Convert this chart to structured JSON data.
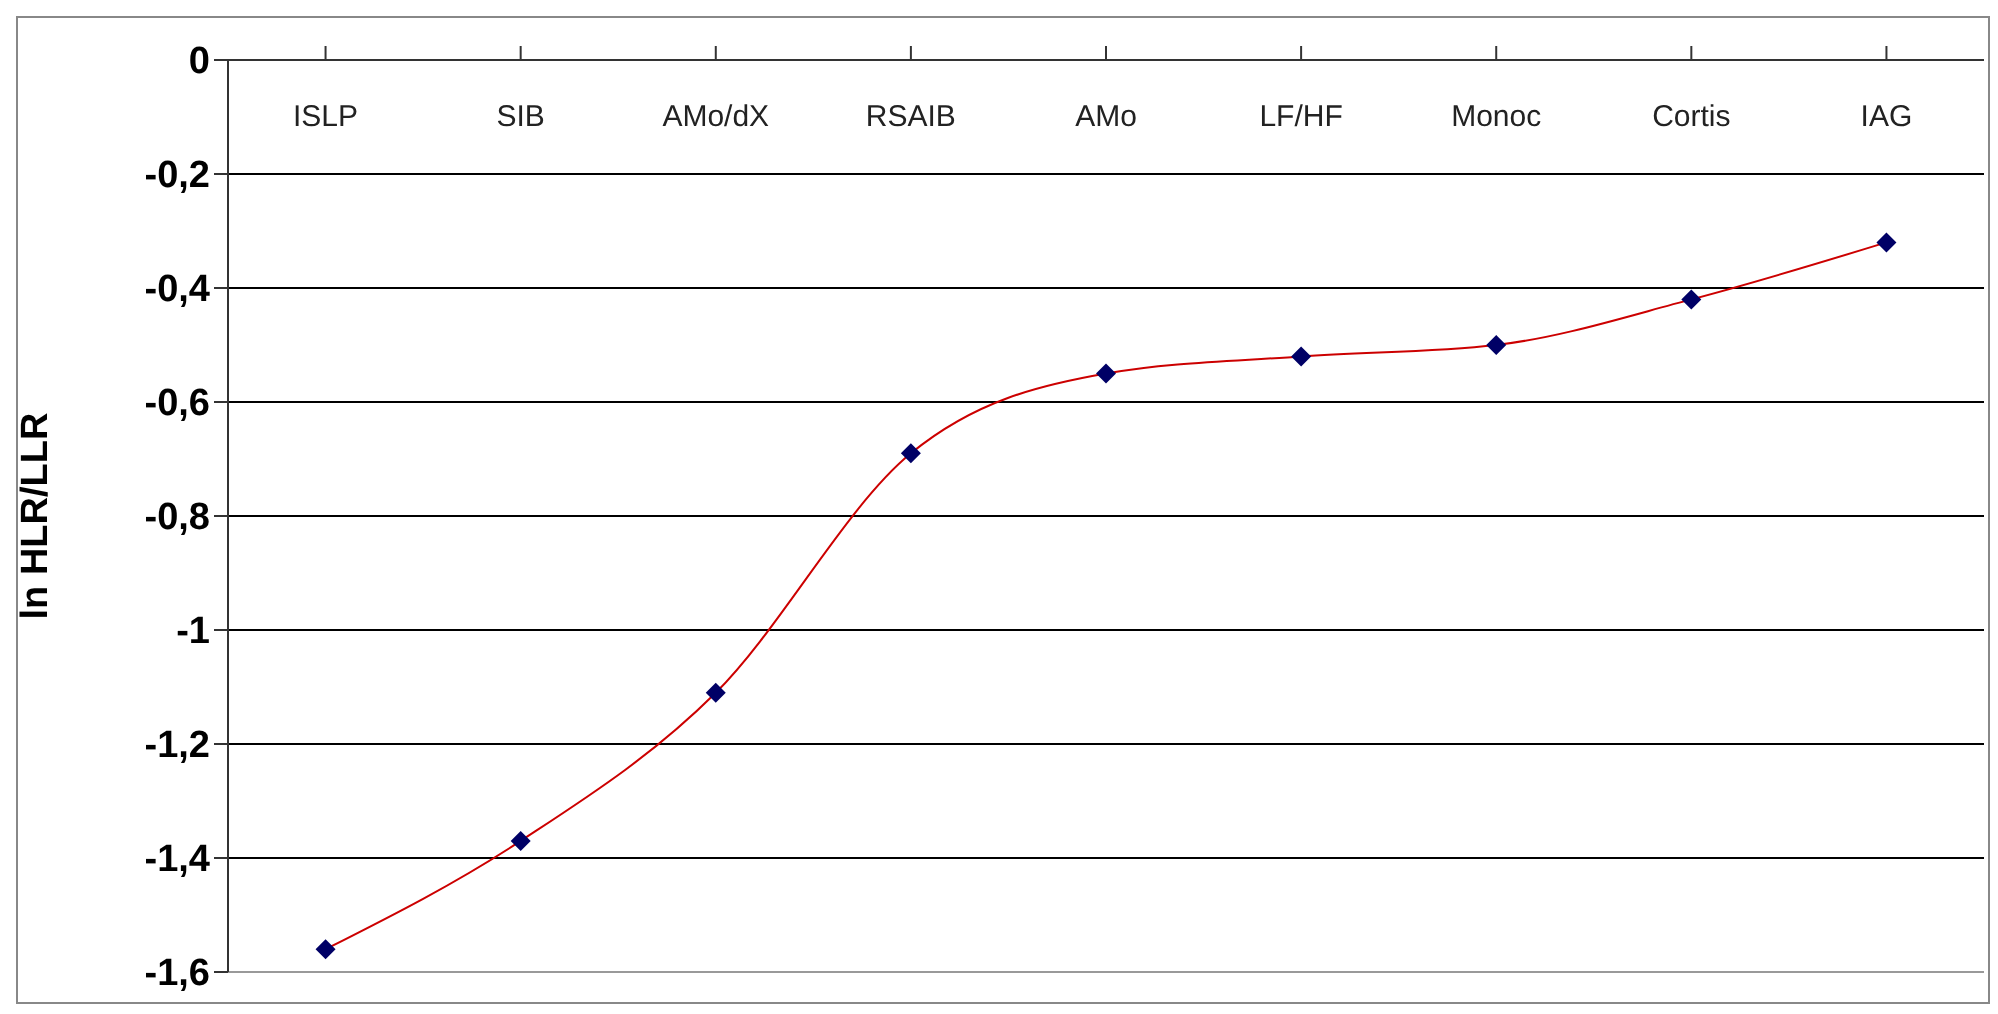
{
  "chart_data": {
    "type": "line",
    "ylabel": "ln HLR/LLR",
    "categories": [
      "ISLP",
      "SIB",
      "AMo/dX",
      "RSAIB",
      "AMo",
      "LF/HF",
      "Monoc",
      "Cortis",
      "IAG"
    ],
    "series": [
      {
        "color": "#cc0000",
        "colors": [
          "#000066",
          "#000066",
          "#000066",
          "#000066",
          "#000066",
          "#000066",
          "#000066",
          "#000066",
          "#000066"
        ],
        "values": [
          -1.56,
          -1.37,
          -1.11,
          -0.69,
          -0.55,
          -0.52,
          -0.5,
          -0.42,
          -0.32
        ]
      }
    ],
    "ylim": [
      -1.6,
      0
    ],
    "yticks": [
      0,
      {
        "value": -0.2,
        "label": "-0,2"
      },
      {
        "value": -0.4,
        "label": "-0,4"
      },
      {
        "value": -0.6,
        "label": "-0,6"
      },
      {
        "value": -0.8,
        "label": "-0,8"
      },
      -1,
      {
        "value": -1.2,
        "label": "-1,2"
      },
      {
        "value": -1.4,
        "label": "-1,4"
      },
      {
        "value": -1.6,
        "label": "-1,6"
      }
    ],
    "grid": "y",
    "marker": "diamond",
    "line_style": "solid",
    "legend": false
  }
}
